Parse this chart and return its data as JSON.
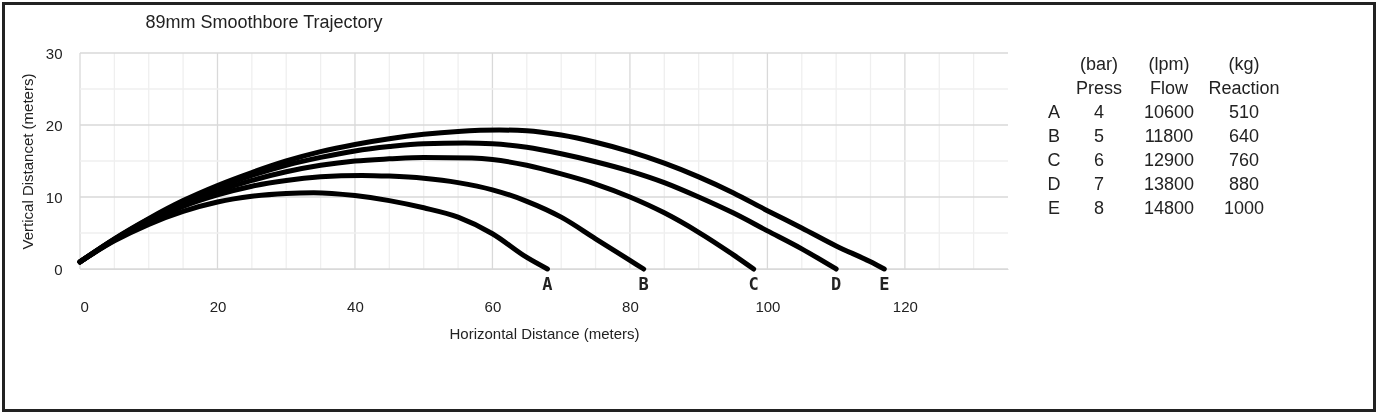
{
  "chart_data": {
    "type": "line",
    "title": "89mm Smoothbore Trajectory",
    "xlabel": "Horizontal Distance (meters)",
    "ylabel": "Vertical Distancet (meters)",
    "xlim": [
      0,
      135
    ],
    "ylim": [
      0,
      30
    ],
    "xticks": [
      0,
      {
        "value": 5,
        "label": null
      },
      {
        "value": 10,
        "label": null
      },
      {
        "value": 15,
        "label": null
      },
      20,
      {
        "value": 25,
        "label": null
      },
      {
        "value": 30,
        "label": null
      },
      {
        "value": 35,
        "label": null
      },
      40,
      {
        "value": 45,
        "label": null
      },
      {
        "value": 50,
        "label": null
      },
      {
        "value": 55,
        "label": null
      },
      60,
      {
        "value": 65,
        "label": null
      },
      {
        "value": 70,
        "label": null
      },
      {
        "value": 75,
        "label": null
      },
      80,
      {
        "value": 85,
        "label": null
      },
      {
        "value": 90,
        "label": null
      },
      {
        "value": 95,
        "label": null
      },
      100,
      {
        "value": 105,
        "label": null
      },
      {
        "value": 110,
        "label": null
      },
      {
        "value": 115,
        "label": null
      },
      120,
      {
        "value": 125,
        "label": null
      },
      {
        "value": 130,
        "label": null
      }
    ],
    "yticks": [
      0,
      {
        "value": 5,
        "label": null
      },
      10,
      {
        "value": 15,
        "label": null
      },
      20,
      {
        "value": 25,
        "label": null
      },
      30
    ],
    "grid": true,
    "line_style": "solid",
    "series": [
      {
        "color": "#000000",
        "x": [
          0,
          5,
          10,
          15,
          20,
          25,
          30,
          34,
          40,
          45,
          50,
          55,
          60,
          65,
          68
        ],
        "values": [
          1,
          3.9,
          6.2,
          8.0,
          9.3,
          10.1,
          10.5,
          10.6,
          10.2,
          9.5,
          8.5,
          7.2,
          4.9,
          1.6,
          0
        ]
      },
      {
        "color": "#000000",
        "x": [
          0,
          5,
          10,
          15,
          20,
          25,
          30,
          35,
          41,
          45,
          50,
          55,
          60,
          65,
          70,
          75,
          80,
          82
        ],
        "values": [
          1,
          4.0,
          6.6,
          8.7,
          10.3,
          11.5,
          12.3,
          12.8,
          13.0,
          12.9,
          12.6,
          12.0,
          11.0,
          9.4,
          7.2,
          4.2,
          1.2,
          0
        ]
      },
      {
        "color": "#000000",
        "x": [
          0,
          5,
          10,
          15,
          20,
          25,
          30,
          35,
          40,
          45,
          50,
          57,
          60,
          65,
          70,
          75,
          80,
          85,
          90,
          95,
          98
        ],
        "values": [
          1,
          4.1,
          6.8,
          9.0,
          10.8,
          12.3,
          13.5,
          14.4,
          15.0,
          15.3,
          15.5,
          15.4,
          15.2,
          14.4,
          13.2,
          11.8,
          10.0,
          7.8,
          5.1,
          2.0,
          0
        ]
      },
      {
        "color": "#000000",
        "x": [
          0,
          5,
          10,
          15,
          20,
          25,
          30,
          35,
          40,
          45,
          50,
          56,
          60,
          65,
          70,
          75,
          80,
          85,
          90,
          95,
          100,
          105,
          110
        ],
        "values": [
          1,
          4.1,
          6.9,
          9.3,
          11.3,
          13.0,
          14.4,
          15.5,
          16.4,
          17.0,
          17.4,
          17.5,
          17.4,
          16.9,
          16.0,
          14.9,
          13.6,
          12.0,
          10.0,
          7.8,
          5.3,
          2.8,
          0
        ]
      },
      {
        "color": "#000000",
        "x": [
          0,
          5,
          10,
          15,
          20,
          25,
          30,
          35,
          40,
          45,
          50,
          55,
          61,
          65,
          70,
          75,
          80,
          85,
          90,
          95,
          100,
          105,
          110,
          115,
          117
        ],
        "values": [
          1,
          4.2,
          7.0,
          9.5,
          11.6,
          13.4,
          15.0,
          16.3,
          17.3,
          18.1,
          18.7,
          19.1,
          19.3,
          19.2,
          18.6,
          17.6,
          16.3,
          14.7,
          12.8,
          10.6,
          8.1,
          5.7,
          3.2,
          1.0,
          0
        ]
      }
    ],
    "annotations": [
      {
        "text": "A",
        "x": 68,
        "y": 0
      },
      {
        "text": "B",
        "x": 82,
        "y": 0
      },
      {
        "text": "C",
        "x": 98,
        "y": 0
      },
      {
        "text": "D",
        "x": 110,
        "y": 0
      },
      {
        "text": "E",
        "x": 117,
        "y": 0
      },
      "\t(bar)\t(lpm)\t(kg)",
      "\tPress\tFlow\tReaction",
      "A\t4\t10600\t510",
      "B\t5\t11800\t640",
      "C\t6\t12900\t760",
      "D\t7\t13800\t880",
      "E\t8\t14800\t1000"
    ]
  }
}
